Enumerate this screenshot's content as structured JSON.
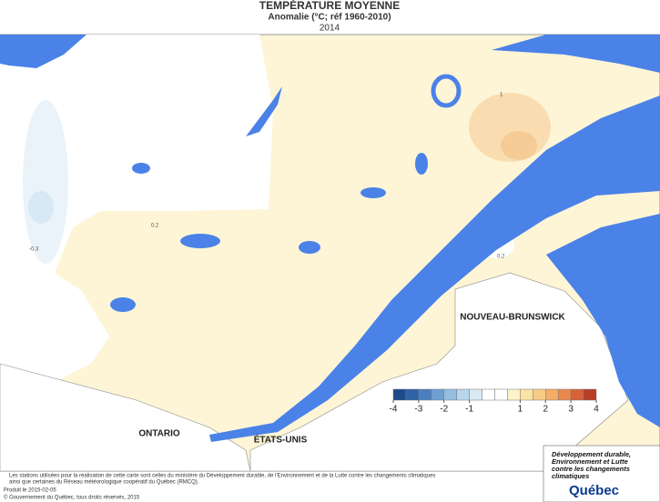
{
  "title": "TEMPÉRATURE MOYENNE",
  "subtitle": "Anomalie (°C; réf 1960-2010)",
  "year": "2014",
  "map_labels": {
    "regions": [
      "NOUVEAU-BRUNSWICK",
      "ONTARIO",
      "ÉTATS-UNIS"
    ],
    "contours": [
      "0.2",
      "-0.3",
      "0.2",
      "1"
    ]
  },
  "legend": {
    "range": [
      -4,
      4
    ],
    "ticks": [
      -4,
      -3,
      -2,
      -1,
      1,
      2,
      3,
      4
    ],
    "colors": [
      "#1e4a8c",
      "#2d62a8",
      "#4a80c0",
      "#6f9ed1",
      "#95bde0",
      "#b8d6ec",
      "#d9eaf5",
      "#ffffff",
      "#ffffff",
      "#fdf3c8",
      "#fbe3a6",
      "#f7cc86",
      "#f2ad68",
      "#e88a50",
      "#d6623a",
      "#b83d26"
    ]
  },
  "footer": {
    "note": [
      "Les stations utilisées pour la réalisation de cette carte sont celles du ministère du Développement durable, de l'Environnement et de la Lutte contre les changements climatiques",
      "ainsi que certaines du Réseau météorologique coopératif du Québec (RMCQ)."
    ],
    "produced": "Produit le 2015-02-05",
    "copyright": "© Gouvernement du Québec, tous droits réservés, 2015"
  },
  "logo": {
    "ministry": [
      "Développement durable,",
      "Environnement et Lutte",
      "contre les changements",
      "climatiques"
    ],
    "name": "Québec"
  }
}
